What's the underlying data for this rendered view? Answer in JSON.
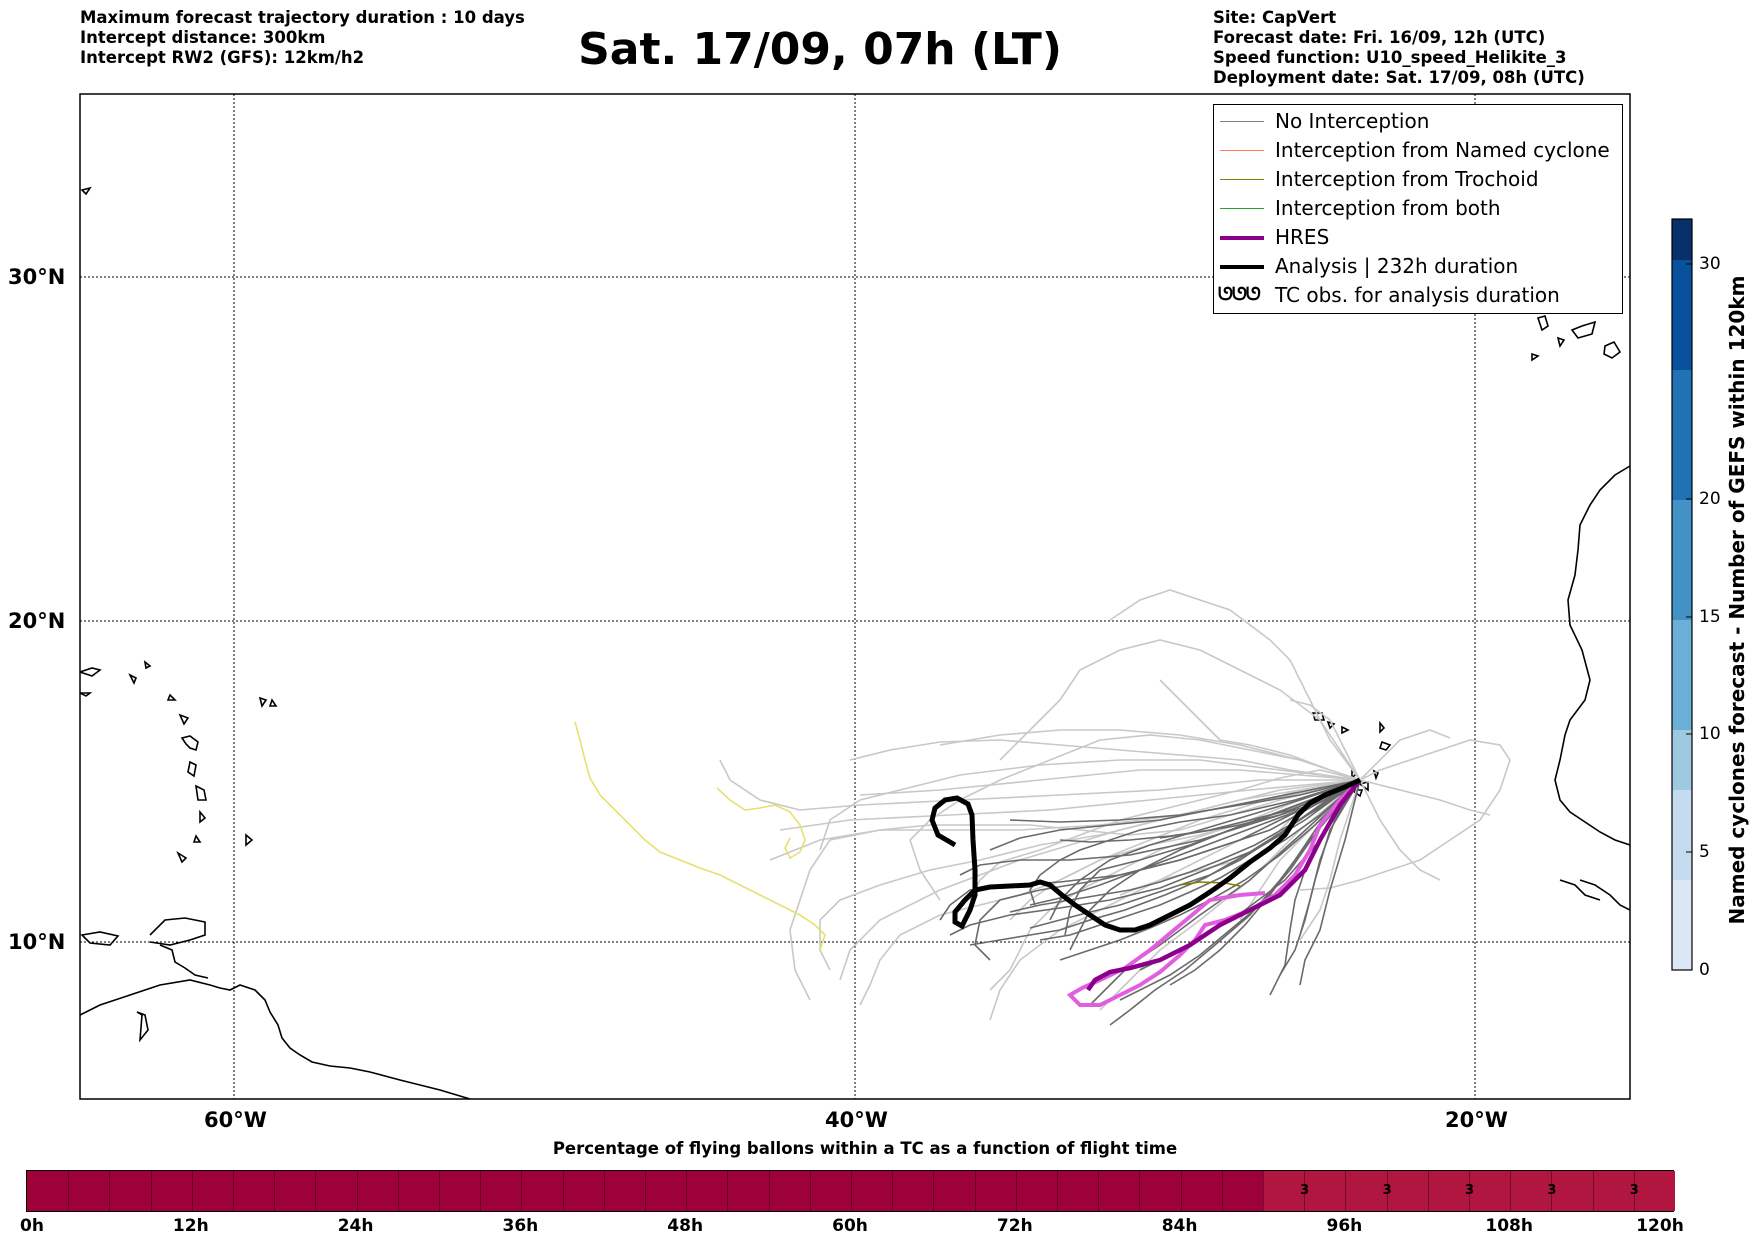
{
  "header_left": [
    "Maximum forecast trajectory duration : 10 days",
    "Intercept distance: 300km",
    "Intercept RW2 (GFS):  12km/h2"
  ],
  "header_right": [
    "Site: CapVert",
    "Forecast date: Fri. 16/09, 12h (UTC)",
    "Speed function: U10_speed_Helikite_3",
    "Deployment date: Sat. 17/09, 08h (UTC)"
  ],
  "title": "Sat. 17/09, 07h (LT)",
  "map": {
    "lat_labels": [
      "30°N",
      "20°N",
      "10°N"
    ],
    "lon_labels": [
      "60°W",
      "40°W",
      "20°W"
    ],
    "extent": {
      "lon": [
        -65,
        -15
      ],
      "lat": [
        5.5,
        34.8
      ]
    }
  },
  "legend": {
    "items": [
      {
        "label": "No Interception",
        "color": "#808080"
      },
      {
        "label": "Interception from Named cyclone",
        "color": "#ff7f50"
      },
      {
        "label": "Interception from Trochoid",
        "color": "#808000"
      },
      {
        "label": "Interception from both",
        "color": "#2ca02c"
      },
      {
        "label": "HRES",
        "color": "#8b008b"
      },
      {
        "label": "Analysis | 232h duration",
        "color": "#000000"
      },
      {
        "label": "TC obs. for analysis duration",
        "symbol": "ᘎᘎᘎ"
      }
    ]
  },
  "colorbar": {
    "title": "Named cyclones forecast - Number of GEFS within 120km",
    "ticks": [
      "0",
      "5",
      "10",
      "15",
      "20",
      "30"
    ],
    "colors": [
      "#dbe7f5",
      "#c6dbef",
      "#9ecae1",
      "#6baed6",
      "#4292c6",
      "#2171b5",
      "#08519c",
      "#08306b"
    ]
  },
  "timebar": {
    "title": "Percentage of flying ballons within a TC as a function of flight time",
    "labels": [
      "0h",
      "12h",
      "24h",
      "36h",
      "48h",
      "60h",
      "72h",
      "84h",
      "96h",
      "108h",
      "120h"
    ],
    "highlight_values": [
      "3",
      "3",
      "3",
      "3",
      "3"
    ],
    "base_color": "#9e003a",
    "highlight_color": "#b0163f"
  },
  "chart_data": {
    "type": "map",
    "analysis_track": {
      "lon": [
        -23.5,
        -24.5,
        -27,
        -29,
        -32.5,
        -34.5,
        -37,
        -40,
        -42.5,
        -42.0,
        -43,
        -43.2,
        -43.5,
        -43.2,
        -42.3,
        -43.2
      ],
      "lat": [
        14.9,
        14.3,
        12.5,
        11.3,
        10.2,
        10.7,
        11.2,
        11.5,
        11.6,
        10.5,
        11.0,
        12.5,
        13.8,
        14.2,
        13.5,
        12.8
      ]
    },
    "hres_track": {
      "lon": [
        -23.5,
        -24.5,
        -26,
        -28.5,
        -31,
        -34,
        -35.5
      ],
      "lat": [
        14.9,
        14.0,
        12.2,
        10.8,
        9.8,
        9.0,
        8.6
      ]
    }
  }
}
